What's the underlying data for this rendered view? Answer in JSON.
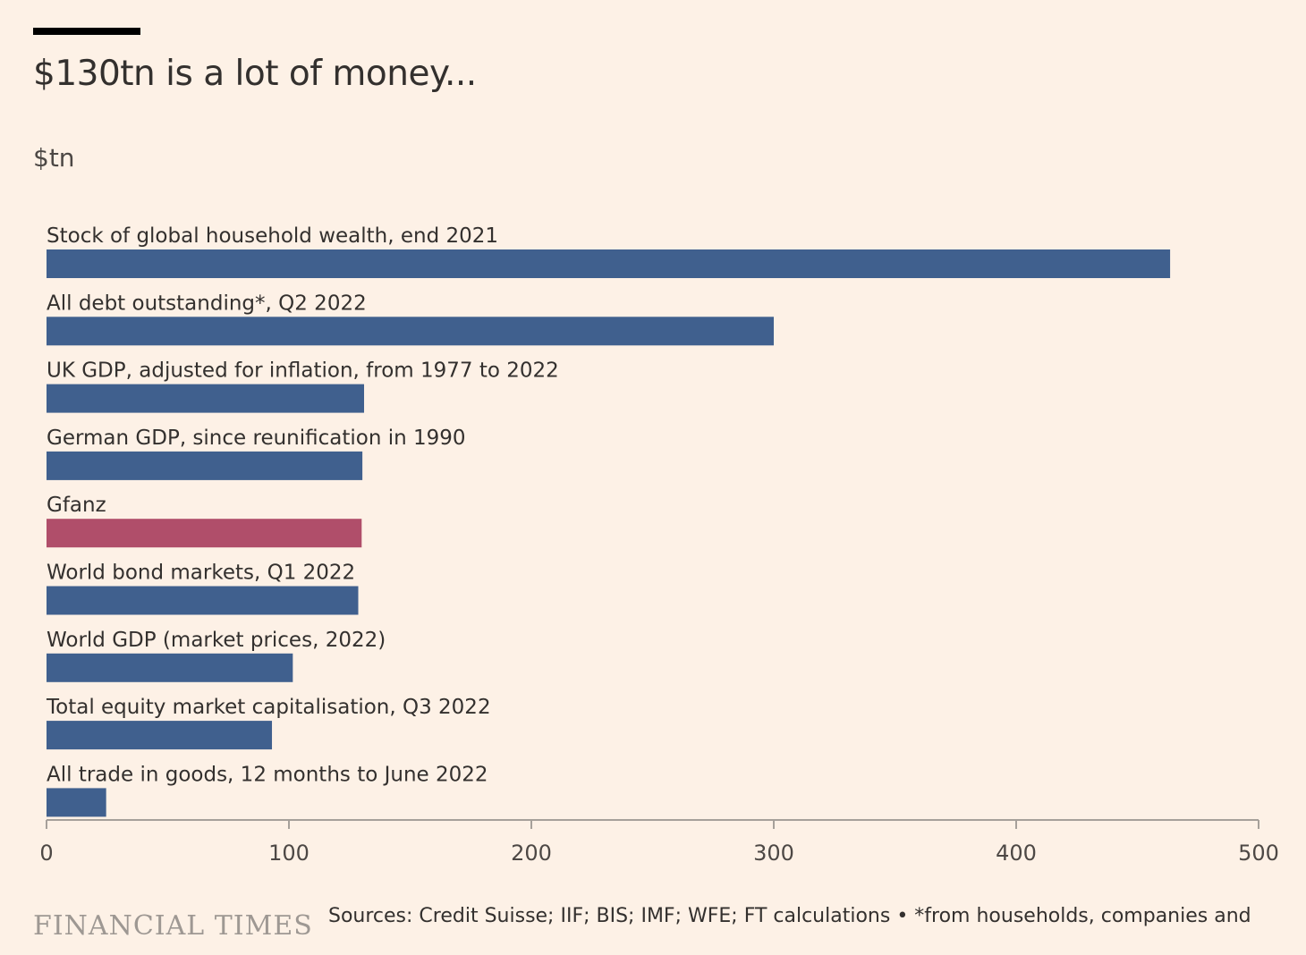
{
  "header": {
    "title": "$130tn is a lot of money...",
    "unit": "$tn"
  },
  "chart_data": {
    "type": "bar",
    "orientation": "horizontal",
    "categories": [
      "Stock of global household wealth, end 2021",
      "All debt outstanding*, Q2 2022",
      "UK GDP, adjusted for inflation, from 1977 to 2022",
      "German GDP, since reunification in 1990",
      "Gfanz",
      "World bond markets, Q1 2022",
      "World GDP (market prices, 2022)",
      "Total equity market capitalisation, Q3 2022",
      "All trade in goods, 12 months to June 2022"
    ],
    "values": [
      463.5,
      300,
      131,
      130.3,
      130,
      128.6,
      101.6,
      93,
      24.6
    ],
    "highlight_index": 4,
    "colors": {
      "bar": "#40608e",
      "highlight": "#b04e6a",
      "axis": "#a6a09a",
      "background": "#fdf1e6"
    },
    "xlim": [
      0,
      500
    ],
    "xticks": [
      0,
      100,
      200,
      300,
      400,
      500
    ],
    "xlabel": "",
    "ylabel": "$tn",
    "title": "$130tn is a lot of money...",
    "grid": false,
    "legend": "none"
  },
  "footer": {
    "brand": "FINANCIAL TIMES",
    "source": "Sources: Credit Suisse; IIF; BIS; IMF; WFE; FT calculations • *from households, companies and"
  }
}
